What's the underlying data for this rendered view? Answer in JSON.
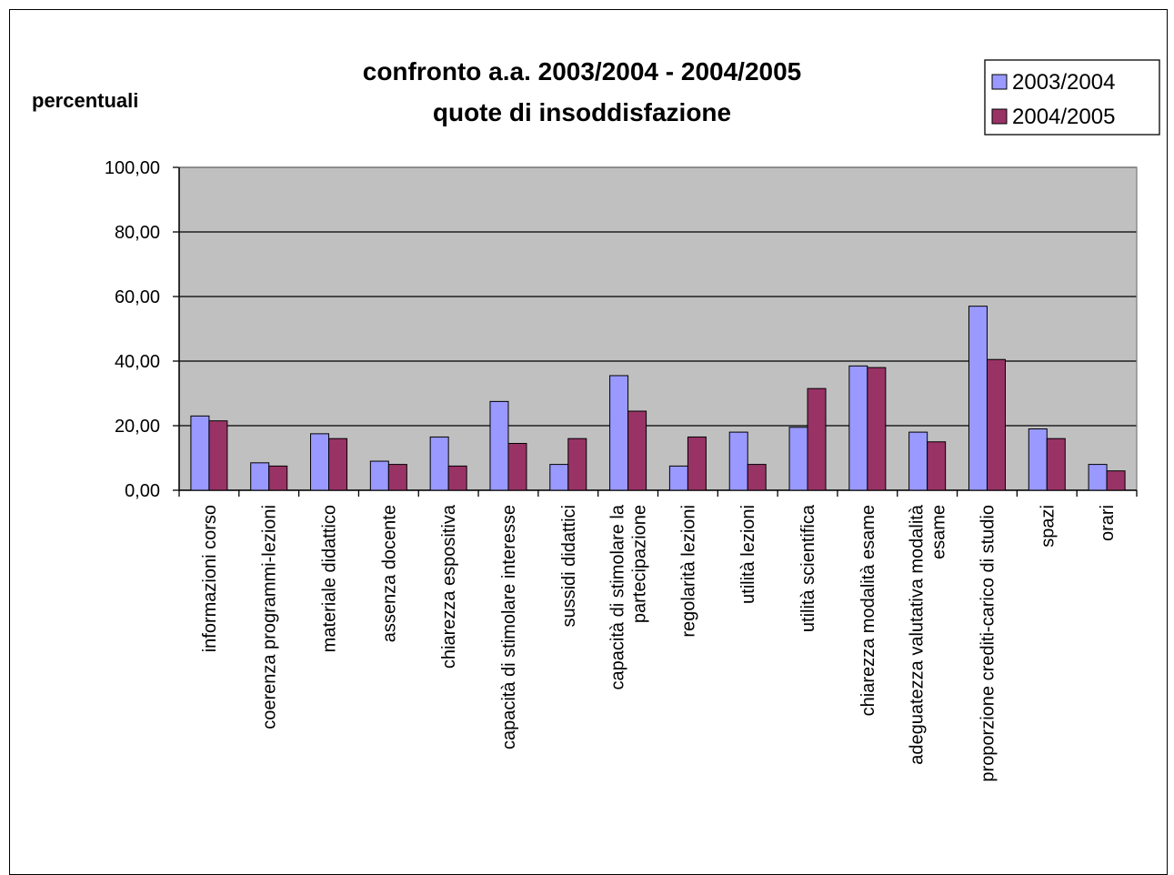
{
  "chart_data": {
    "type": "bar",
    "title": [
      "confronto a.a. 2003/2004 - 2004/2005",
      "quote di insoddisfazione"
    ],
    "ylabel": "percentuali",
    "xlabel": "",
    "ylim": [
      0,
      100
    ],
    "yticks": [
      "0,00",
      "20,00",
      "40,00",
      "60,00",
      "80,00",
      "100,00"
    ],
    "ytick_values": [
      0,
      20,
      40,
      60,
      80,
      100
    ],
    "grid": true,
    "legend_position": "top-right",
    "categories": [
      [
        "informazioni corso"
      ],
      [
        "coerenza programmi-lezioni"
      ],
      [
        "materiale didattico"
      ],
      [
        "assenza docente"
      ],
      [
        "chiarezza espositiva"
      ],
      [
        "capacità di stimolare interesse"
      ],
      [
        "sussidi didattici"
      ],
      [
        "capacità di stimolare la",
        "partecipazione"
      ],
      [
        "regolarità lezioni"
      ],
      [
        "utilità lezioni"
      ],
      [
        "utilità scientifica"
      ],
      [
        "chiarezza modalità esame"
      ],
      [
        "adeguatezza valutativa modalità",
        "esame"
      ],
      [
        "proporzione crediti-carico di studio"
      ],
      [
        "spazi"
      ],
      [
        "orari"
      ]
    ],
    "series": [
      {
        "name": "2003/2004",
        "color": "#9999ff",
        "values": [
          23,
          8.5,
          17.5,
          9,
          16.5,
          27.5,
          8,
          35.5,
          7.5,
          18,
          19.5,
          38.5,
          18,
          57,
          19,
          8
        ]
      },
      {
        "name": "2004/2005",
        "color": "#993366",
        "values": [
          21.5,
          7.5,
          16,
          8,
          7.5,
          14.5,
          16,
          24.5,
          16.5,
          8,
          31.5,
          38,
          15,
          40.5,
          16,
          6
        ]
      }
    ],
    "plot_bg": "#c0c0c0"
  }
}
